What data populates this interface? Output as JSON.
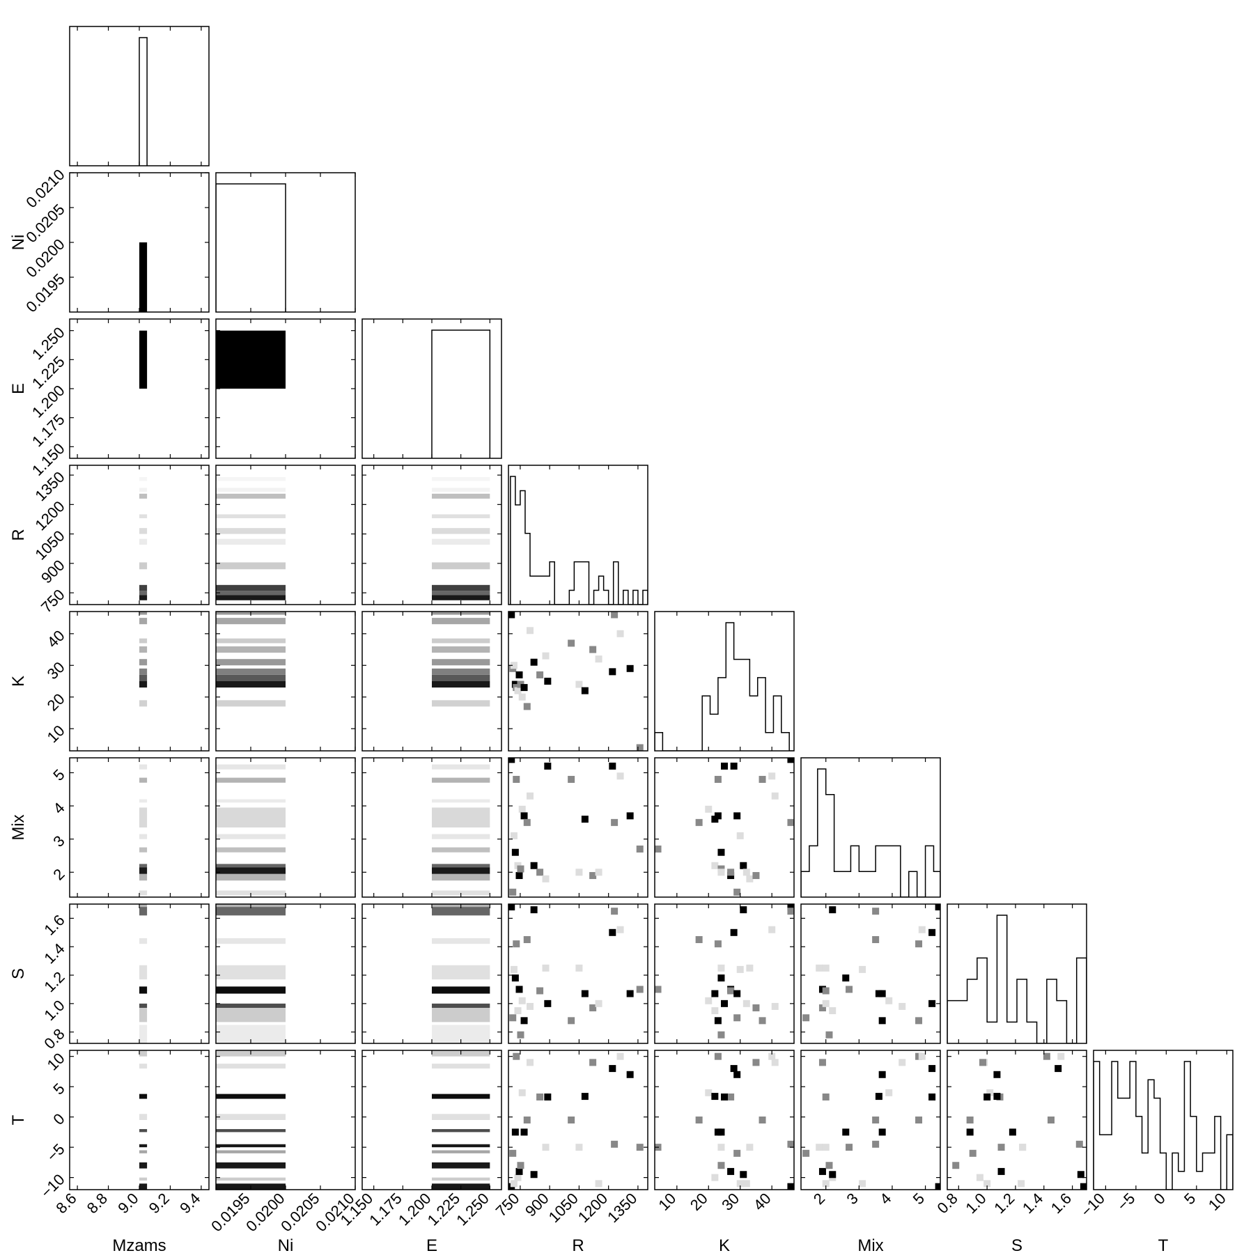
{
  "chart_data": {
    "type": "corner",
    "parameters": [
      "Mzams",
      "Ni",
      "E",
      "R",
      "K",
      "Mix",
      "S",
      "T"
    ],
    "ranges": {
      "Mzams": [
        8.55,
        9.45
      ],
      "Ni": [
        0.019,
        0.021
      ],
      "E": [
        1.14,
        1.26
      ],
      "R": [
        690,
        1400
      ],
      "K": [
        3,
        47
      ],
      "Mix": [
        1.25,
        5.45
      ],
      "S": [
        0.72,
        1.7
      ],
      "T": [
        -12,
        11
      ]
    },
    "ticks": {
      "Mzams": [
        {
          "v": 8.6,
          "label": "8.6"
        },
        {
          "v": 8.8,
          "label": "8.8"
        },
        {
          "v": 9.0,
          "label": "9.0"
        },
        {
          "v": 9.2,
          "label": "9.2"
        },
        {
          "v": 9.4,
          "label": "9.4"
        }
      ],
      "Ni": [
        {
          "v": 0.0195,
          "label": "0.0195"
        },
        {
          "v": 0.02,
          "label": "0.0200"
        },
        {
          "v": 0.0205,
          "label": "0.0205"
        },
        {
          "v": 0.021,
          "label": "0.0210"
        }
      ],
      "E": [
        {
          "v": 1.15,
          "label": "1.150"
        },
        {
          "v": 1.175,
          "label": "1.175"
        },
        {
          "v": 1.2,
          "label": "1.200"
        },
        {
          "v": 1.225,
          "label": "1.225"
        },
        {
          "v": 1.25,
          "label": "1.250"
        }
      ],
      "R": [
        {
          "v": 750,
          "label": "750"
        },
        {
          "v": 900,
          "label": "900"
        },
        {
          "v": 1050,
          "label": "1050"
        },
        {
          "v": 1200,
          "label": "1200"
        },
        {
          "v": 1350,
          "label": "1350"
        }
      ],
      "K": [
        {
          "v": 10,
          "label": "10"
        },
        {
          "v": 20,
          "label": "20"
        },
        {
          "v": 30,
          "label": "30"
        },
        {
          "v": 40,
          "label": "40"
        }
      ],
      "Mix": [
        {
          "v": 2,
          "label": "2"
        },
        {
          "v": 3,
          "label": "3"
        },
        {
          "v": 4,
          "label": "4"
        },
        {
          "v": 5,
          "label": "5"
        }
      ],
      "S": [
        {
          "v": 0.8,
          "label": "0.8"
        },
        {
          "v": 1.0,
          "label": "1.0"
        },
        {
          "v": 1.2,
          "label": "1.2"
        },
        {
          "v": 1.4,
          "label": "1.4"
        },
        {
          "v": 1.6,
          "label": "1.6"
        }
      ],
      "T": [
        {
          "v": -10,
          "label": "−10"
        },
        {
          "v": -5,
          "label": "−5"
        },
        {
          "v": 0,
          "label": "0"
        },
        {
          "v": 5,
          "label": "5"
        },
        {
          "v": 10,
          "label": "10"
        }
      ]
    },
    "histograms": {
      "Mzams": {
        "edges": [
          9.0,
          9.05
        ],
        "counts": [
          1
        ]
      },
      "Ni": {
        "edges": [
          0.019,
          0.02
        ],
        "counts": [
          1
        ]
      },
      "E": {
        "edges": [
          1.2,
          1.25
        ],
        "counts": [
          1
        ]
      },
      "R": {
        "edges": [
          700,
          725,
          750,
          775,
          800,
          825,
          850,
          875,
          900,
          925,
          950,
          975,
          1000,
          1025,
          1050,
          1075,
          1100,
          1125,
          1150,
          1175,
          1200,
          1225,
          1250,
          1275,
          1300,
          1325,
          1350,
          1375,
          1400
        ],
        "counts": [
          9,
          7,
          8,
          5,
          2,
          2,
          2,
          2,
          3,
          0,
          0,
          0,
          1,
          3,
          3,
          3,
          0,
          1,
          2,
          1,
          0,
          3,
          0,
          1,
          0,
          1,
          0,
          1
        ]
      },
      "K": {
        "edges": [
          3,
          5.5,
          8,
          10.5,
          13,
          15.5,
          18,
          20.5,
          23,
          25.5,
          28,
          30.5,
          33,
          35.5,
          38,
          40.5,
          43,
          45.5,
          48
        ],
        "counts": [
          1,
          0,
          0,
          0,
          0,
          0,
          3,
          2,
          4,
          7,
          5,
          5,
          3,
          4,
          1,
          3,
          1,
          0
        ]
      },
      "Mix": {
        "edges": [
          1.25,
          1.5,
          1.75,
          2.0,
          2.25,
          2.5,
          2.75,
          3.0,
          3.25,
          3.5,
          3.75,
          4.0,
          4.25,
          4.5,
          4.75,
          5.0,
          5.25,
          5.45
        ],
        "counts": [
          1,
          2,
          5,
          4,
          1,
          1,
          2,
          1,
          1,
          2,
          2,
          2,
          0,
          1,
          0,
          2,
          1
        ]
      },
      "S": {
        "edges": [
          0.72,
          0.79,
          0.86,
          0.93,
          1.0,
          1.07,
          1.14,
          1.21,
          1.28,
          1.35,
          1.42,
          1.49,
          1.56,
          1.63,
          1.7
        ],
        "counts": [
          2,
          2,
          3,
          4,
          1,
          6,
          1,
          3,
          1,
          0,
          3,
          2,
          0,
          4
        ]
      },
      "T": {
        "edges": [
          -12,
          -11,
          -10,
          -9,
          -8,
          -7,
          -6,
          -5,
          -4,
          -3,
          -2,
          -1,
          0,
          1,
          2,
          3,
          4,
          5,
          6,
          7,
          8,
          9,
          10,
          11
        ],
        "counts": [
          7,
          3,
          3,
          7,
          5,
          5,
          7,
          4,
          2,
          6,
          5,
          2,
          0,
          2,
          1,
          7,
          4,
          1,
          2,
          2,
          4,
          0,
          3
        ]
      }
    },
    "bands": {
      "R": [
        [
          712,
          738,
          0.9
        ],
        [
          738,
          760,
          0.6
        ],
        [
          760,
          790,
          0.75
        ],
        [
          870,
          905,
          0.2
        ],
        [
          995,
          1025,
          0.08
        ],
        [
          1050,
          1080,
          0.14
        ],
        [
          1130,
          1150,
          0.12
        ],
        [
          1230,
          1255,
          0.25
        ],
        [
          1265,
          1285,
          0.05
        ],
        [
          1320,
          1340,
          0.04
        ]
      ],
      "K": [
        [
          17,
          19,
          0.18
        ],
        [
          23,
          25,
          0.9
        ],
        [
          25,
          27,
          0.65
        ],
        [
          27,
          29,
          0.5
        ],
        [
          30,
          32,
          0.4
        ],
        [
          34,
          36,
          0.3
        ],
        [
          37,
          38.5,
          0.2
        ],
        [
          43,
          45,
          0.35
        ],
        [
          46,
          47,
          0.4
        ]
      ],
      "Mix": [
        [
          1.3,
          1.45,
          0.12
        ],
        [
          1.75,
          1.95,
          0.3
        ],
        [
          1.95,
          2.15,
          0.9
        ],
        [
          2.15,
          2.25,
          0.6
        ],
        [
          2.6,
          2.75,
          0.25
        ],
        [
          3.0,
          3.15,
          0.1
        ],
        [
          3.35,
          3.95,
          0.15
        ],
        [
          4.1,
          4.2,
          0.08
        ],
        [
          4.7,
          4.85,
          0.3
        ],
        [
          5.1,
          5.25,
          0.1
        ]
      ],
      "S": [
        [
          0.72,
          0.85,
          0.08
        ],
        [
          0.87,
          0.97,
          0.2
        ],
        [
          0.97,
          1.0,
          0.7
        ],
        [
          1.07,
          1.12,
          0.95
        ],
        [
          1.17,
          1.27,
          0.12
        ],
        [
          1.42,
          1.46,
          0.1
        ],
        [
          1.62,
          1.68,
          0.6
        ],
        [
          1.68,
          1.7,
          0.3
        ]
      ],
      "T": [
        [
          -12,
          -11,
          0.9
        ],
        [
          -10.5,
          -10,
          0.2
        ],
        [
          -8.5,
          -7.5,
          0.9
        ],
        [
          -6,
          -5.5,
          0.35
        ],
        [
          -5,
          -4.5,
          0.9
        ],
        [
          -2.5,
          -2,
          0.7
        ],
        [
          -0.5,
          0.5,
          0.12
        ],
        [
          3,
          3.8,
          0.95
        ],
        [
          8,
          8.8,
          0.12
        ],
        [
          10,
          11,
          0.2
        ]
      ]
    },
    "points": {
      "R": [
        705,
        712,
        718,
        725,
        730,
        738,
        745,
        752,
        760,
        770,
        785,
        800,
        820,
        850,
        880,
        890,
        1010,
        1050,
        1080,
        1120,
        1150,
        1220,
        1230,
        1260,
        1310,
        1360
      ],
      "K": [
        46,
        29,
        30,
        24,
        23,
        22,
        27,
        24,
        20,
        23,
        17,
        41,
        31,
        27,
        33,
        25,
        37,
        24,
        22,
        35,
        32,
        28,
        46,
        40,
        29,
        4
      ],
      "Mix": [
        5.4,
        1.4,
        3.1,
        2.6,
        4.8,
        2.2,
        1.9,
        2.1,
        3.9,
        3.7,
        3.5,
        4.3,
        2.2,
        2.0,
        1.8,
        5.2,
        4.8,
        2.0,
        3.6,
        1.9,
        2.0,
        5.2,
        3.5,
        4.9,
        3.7,
        2.7
      ],
      "S": [
        1.68,
        0.9,
        1.24,
        1.18,
        1.42,
        0.95,
        1.1,
        0.78,
        1.02,
        0.88,
        1.45,
        0.98,
        1.66,
        1.09,
        1.25,
        1.0,
        0.88,
        1.25,
        1.07,
        0.97,
        1.0,
        1.5,
        1.65,
        1.52,
        1.07,
        1.1
      ],
      "T": [
        -11.5,
        -6,
        -11,
        -2.5,
        10,
        -10,
        -9,
        -8,
        4,
        -2.5,
        -0.5,
        9,
        -9.5,
        3.3,
        -5,
        3.3,
        -0.5,
        -5,
        3.4,
        9,
        -11,
        8,
        -4.5,
        10,
        7,
        -5
      ]
    }
  }
}
